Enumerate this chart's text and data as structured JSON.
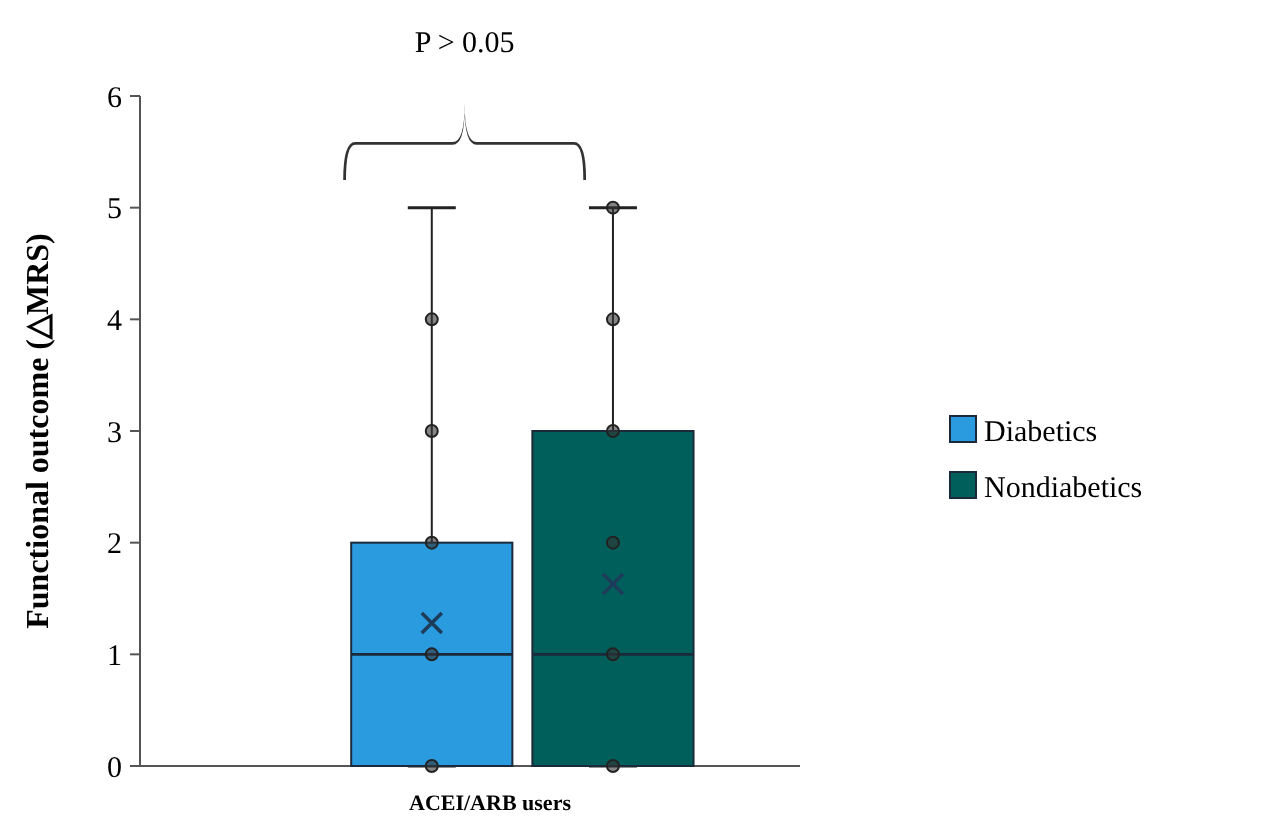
{
  "chart_data": {
    "type": "box",
    "categories": [
      "ACEI/ARB users"
    ],
    "ylabel": "Functional outcome (△MRS)",
    "ylim": [
      0,
      6
    ],
    "yticks": [
      0,
      1,
      2,
      3,
      4,
      5,
      6
    ],
    "grid": false,
    "legend": "right",
    "annotations": [
      "P > 0.05"
    ],
    "series": [
      {
        "name": "Diabetics",
        "color": "#2b9be0",
        "boxes": [
          {
            "low": 0,
            "q1": 0,
            "median": 1,
            "q3": 2,
            "high": 5,
            "mean": 1.28
          }
        ]
      },
      {
        "name": "Nondiabetics",
        "color": "#005f5a",
        "boxes": [
          {
            "low": 0,
            "q1": 0,
            "median": 1,
            "q3": 3,
            "high": 5,
            "mean": 1.63
          }
        ]
      },
      {
        "type": "scatter",
        "color": "#333333",
        "x": [
          "ACEI/ARB users",
          "ACEI/ARB users",
          "ACEI/ARB users",
          "ACEI/ARB users",
          "ACEI/ARB users"
        ],
        "values": [
          0,
          1,
          2,
          3,
          4
        ]
      },
      {
        "type": "scatter",
        "color": "#333333",
        "x": [
          "ACEI/ARB users",
          "ACEI/ARB users",
          "ACEI/ARB users",
          "ACEI/ARB users",
          "ACEI/ARB users",
          "ACEI/ARB users"
        ],
        "values": [
          0,
          1,
          2,
          3,
          4,
          5
        ]
      }
    ]
  }
}
